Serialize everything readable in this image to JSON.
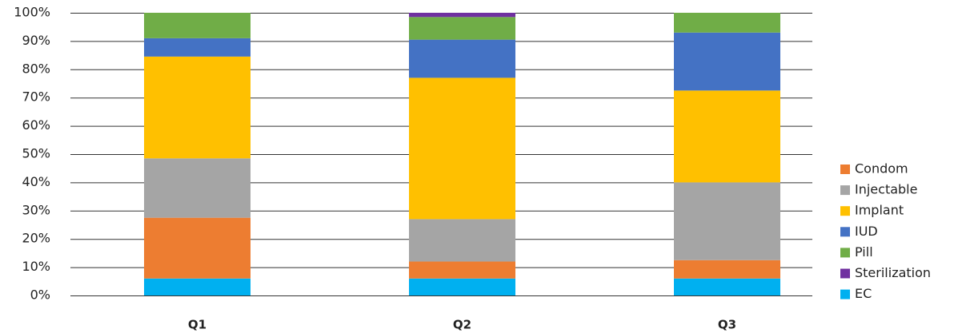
{
  "chart_data": {
    "type": "stacked_bar_100",
    "categories": [
      "Q1",
      "Q2",
      "Q3"
    ],
    "series": [
      {
        "name": "Condom",
        "color": "#ED7D31",
        "values": [
          21.5,
          6,
          6.5
        ]
      },
      {
        "name": "Injectable",
        "color": "#A5A5A5",
        "values": [
          21,
          15,
          27.5
        ]
      },
      {
        "name": "Implant",
        "color": "#FFC000",
        "values": [
          36,
          50,
          32.5
        ]
      },
      {
        "name": "IUD",
        "color": "#4472C4",
        "values": [
          6.5,
          13.5,
          20.5
        ]
      },
      {
        "name": "Pill",
        "color": "#70AD47",
        "values": [
          9,
          8,
          7
        ]
      },
      {
        "name": "Sterilization",
        "color": "#7030A0",
        "values": [
          0,
          1.5,
          0
        ]
      },
      {
        "name": "EC",
        "color": "#00B0F0",
        "values": [
          6,
          6,
          6
        ]
      }
    ],
    "ylim": [
      0,
      100
    ],
    "yticks": [
      {
        "value": 0,
        "label": "0%"
      },
      {
        "value": 10,
        "label": "10%"
      },
      {
        "value": 20,
        "label": "20%"
      },
      {
        "value": 30,
        "label": "30%"
      },
      {
        "value": 40,
        "label": "40%"
      },
      {
        "value": 50,
        "label": "50%"
      },
      {
        "value": 60,
        "label": "60%"
      },
      {
        "value": 70,
        "label": "70%"
      },
      {
        "value": 80,
        "label": "80%"
      },
      {
        "value": 90,
        "label": "90%"
      },
      {
        "value": 100,
        "label": "100%"
      }
    ],
    "grid": true,
    "legend": "right"
  }
}
